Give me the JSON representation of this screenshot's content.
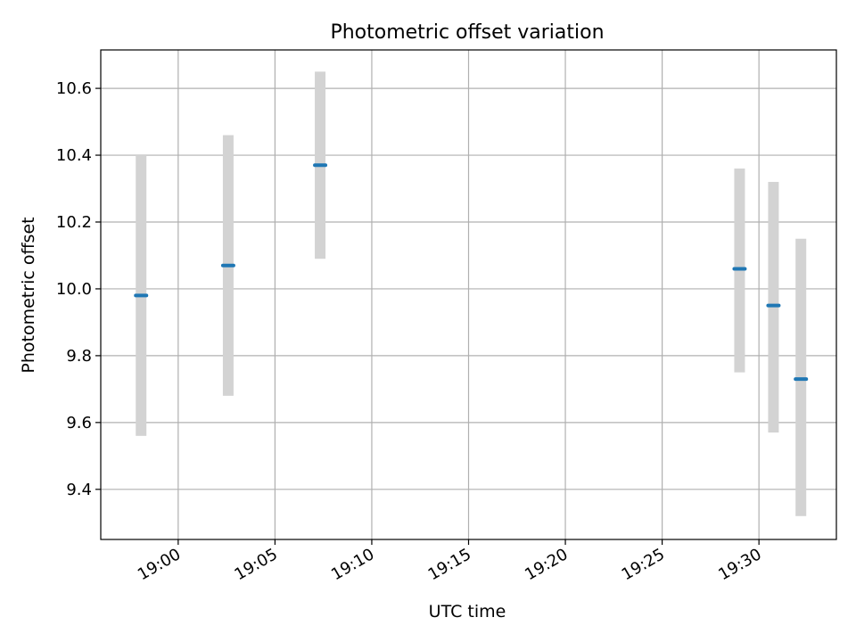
{
  "chart_data": {
    "type": "scatter",
    "title": "Photometric offset variation",
    "xlabel": "UTC time",
    "ylabel": "Photometric offset",
    "x_ticks": [
      "19:00",
      "19:05",
      "19:10",
      "19:15",
      "19:20",
      "19:25",
      "19:30"
    ],
    "y_ticks": [
      "9.4",
      "9.6",
      "9.8",
      "10.0",
      "10.2",
      "10.4",
      "10.6"
    ],
    "xlim": [
      "18:56:00",
      "19:34:00"
    ],
    "ylim": [
      9.25,
      10.715
    ],
    "grid": true,
    "points": [
      {
        "x": "18:58:05",
        "y": 9.98,
        "y_low": 9.56,
        "y_high": 10.4
      },
      {
        "x": "19:02:35",
        "y": 10.07,
        "y_low": 9.68,
        "y_high": 10.46
      },
      {
        "x": "19:07:20",
        "y": 10.37,
        "y_low": 10.09,
        "y_high": 10.65
      },
      {
        "x": "19:29:00",
        "y": 10.06,
        "y_low": 9.75,
        "y_high": 10.36
      },
      {
        "x": "19:30:45",
        "y": 9.95,
        "y_low": 9.57,
        "y_high": 10.32
      },
      {
        "x": "19:32:10",
        "y": 9.73,
        "y_low": 9.32,
        "y_high": 10.15
      }
    ],
    "colors": {
      "point": "#1f77b4",
      "range": "#d3d3d3",
      "grid": "#b0b0b0",
      "axis": "#000000"
    }
  }
}
